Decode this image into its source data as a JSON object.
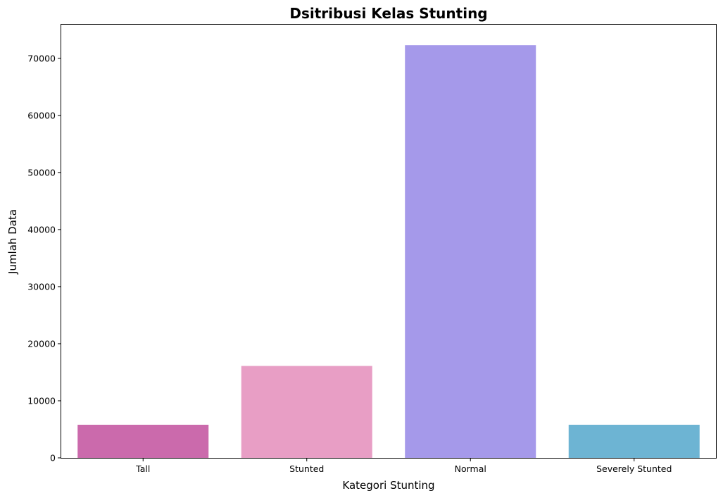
{
  "chart_data": {
    "type": "bar",
    "title": "Dsitribusi Kelas Stunting",
    "xlabel": "Kategori Stunting",
    "ylabel": "Jumlah Data",
    "categories": [
      "Tall",
      "Stunted",
      "Normal",
      "Severely Stunted"
    ],
    "values": [
      5800,
      16100,
      72300,
      5800
    ],
    "colors": [
      "#cb6aac",
      "#e89ec5",
      "#a599ea",
      "#6db4d3"
    ],
    "ylim": [
      0,
      75900
    ],
    "yticks": [
      0,
      10000,
      20000,
      30000,
      40000,
      50000,
      60000,
      70000
    ],
    "grid": false,
    "legend": "none"
  }
}
